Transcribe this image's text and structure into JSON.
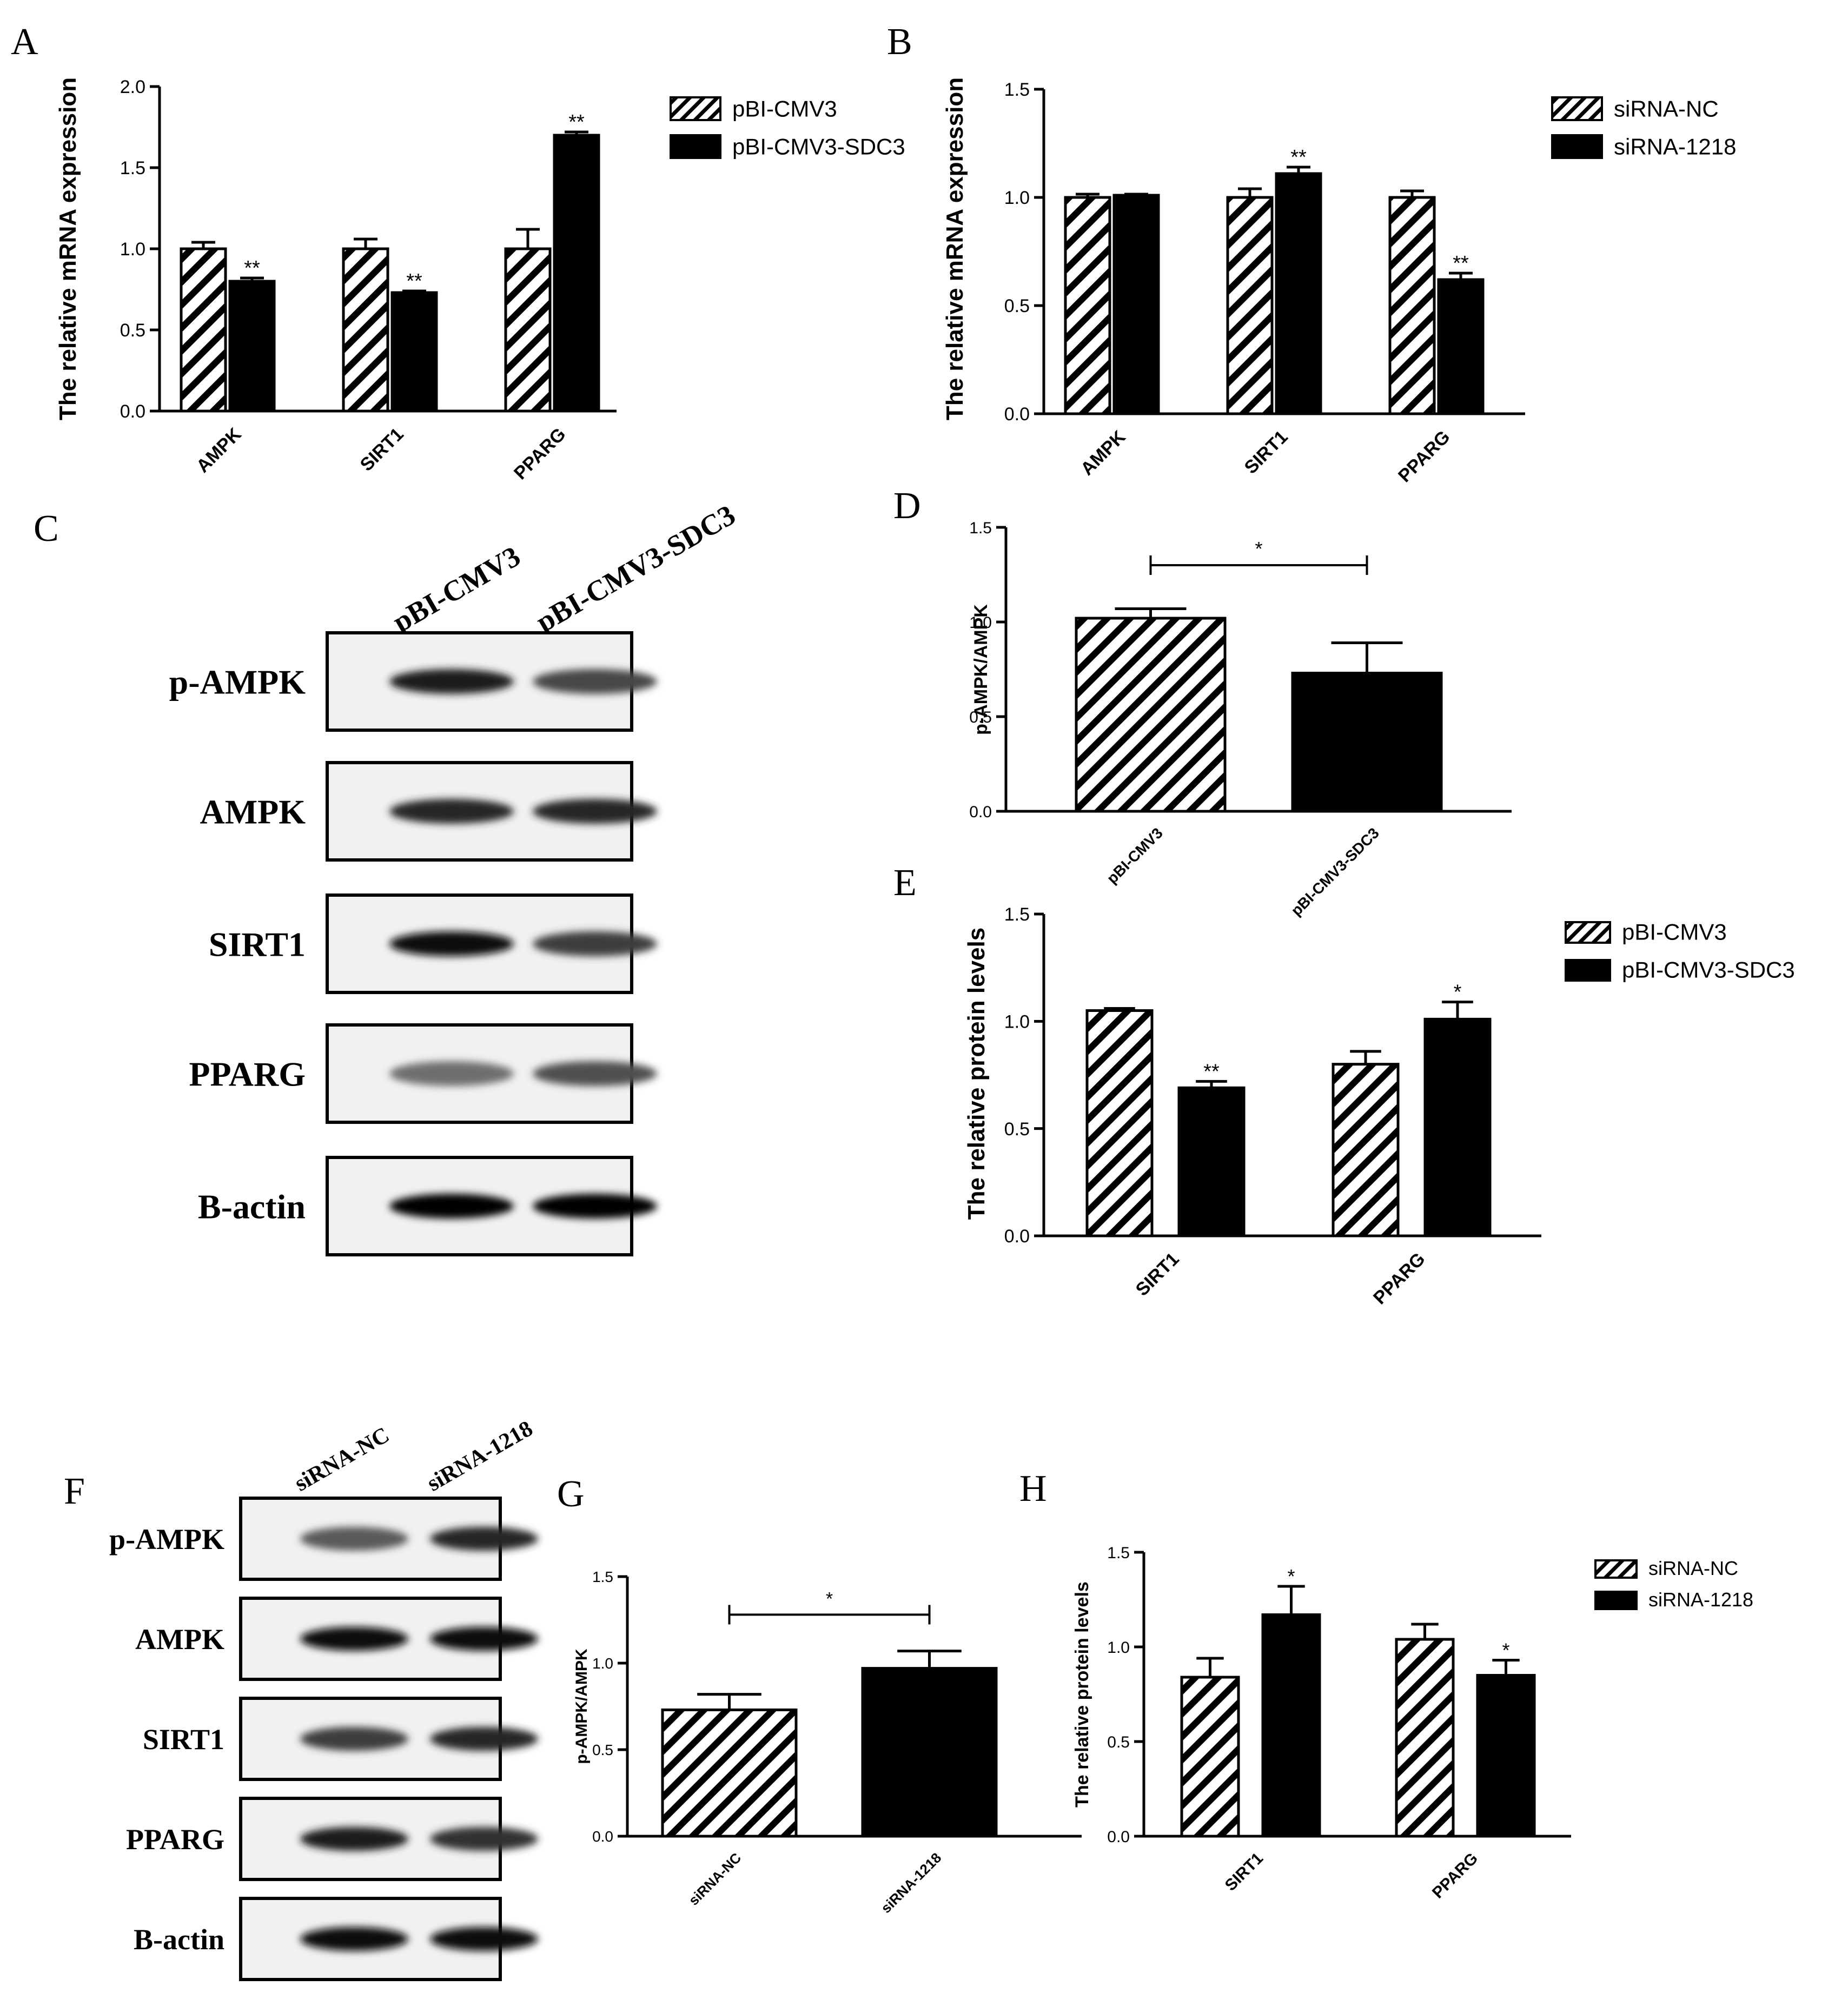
{
  "colors": {
    "bar_filled": "#000000",
    "hatch": "#000000",
    "background": "#ffffff"
  },
  "chart_data": [
    {
      "panel": "A",
      "type": "bar",
      "ylabel": "The relative mRNA expression",
      "ylim": [
        0,
        2.0
      ],
      "yticks": [
        0.0,
        0.5,
        1.0,
        1.5,
        2.0
      ],
      "ytick_decimals": 1,
      "categories": [
        "AMPK",
        "SIRT1",
        "PPARG"
      ],
      "series": [
        {
          "name": "pBI-CMV3",
          "style": "hatched",
          "values": [
            1.0,
            1.0,
            1.0
          ],
          "errors": [
            0.04,
            0.06,
            0.12
          ],
          "sig": [
            "",
            "",
            ""
          ]
        },
        {
          "name": "pBI-CMV3-SDC3",
          "style": "filled",
          "values": [
            0.8,
            0.73,
            1.7
          ],
          "errors": [
            0.02,
            0.01,
            0.02
          ],
          "sig": [
            "**",
            "**",
            "**"
          ]
        }
      ],
      "legend": "right",
      "grid": false
    },
    {
      "panel": "B",
      "type": "bar",
      "ylabel": "The relative mRNA expression",
      "ylim": [
        0,
        1.5
      ],
      "yticks": [
        0.0,
        0.5,
        1.0,
        1.5
      ],
      "ytick_decimals": 1,
      "categories": [
        "AMPK",
        "SIRT1",
        "PPARG"
      ],
      "series": [
        {
          "name": "siRNA-NC",
          "style": "hatched",
          "values": [
            1.0,
            1.0,
            1.0
          ],
          "errors": [
            0.015,
            0.04,
            0.03
          ],
          "sig": [
            "",
            "",
            ""
          ]
        },
        {
          "name": "siRNA-1218",
          "style": "filled",
          "values": [
            1.01,
            1.11,
            0.62
          ],
          "errors": [
            0.005,
            0.03,
            0.03
          ],
          "sig": [
            "",
            "**",
            "**"
          ]
        }
      ],
      "legend": "right",
      "grid": false
    },
    {
      "panel": "D",
      "type": "bar",
      "ylabel": "p-AMPK/AMPK",
      "ylim": [
        0,
        1.5
      ],
      "yticks": [
        0.0,
        0.5,
        1.0,
        1.5
      ],
      "ytick_decimals": 1,
      "categories": [
        "pBI-CMV3",
        "pBI-CMV3-SDC3"
      ],
      "series": [
        {
          "name": "",
          "style": "per-category",
          "styles": [
            "hatched",
            "filled"
          ],
          "values": [
            1.02,
            0.73
          ],
          "errors": [
            0.05,
            0.16
          ]
        }
      ],
      "bracket": {
        "from": 0,
        "to": 1,
        "y": 1.3,
        "label": "*"
      },
      "legend": "none",
      "grid": false
    },
    {
      "panel": "E",
      "type": "bar",
      "ylabel": "The relative protein levels",
      "ylim": [
        0,
        1.5
      ],
      "yticks": [
        0.0,
        0.5,
        1.0,
        1.5
      ],
      "ytick_decimals": 1,
      "categories": [
        "SIRT1",
        "PPARG"
      ],
      "series": [
        {
          "name": "pBI-CMV3",
          "style": "hatched",
          "values": [
            1.05,
            0.8
          ],
          "errors": [
            0.01,
            0.06
          ],
          "sig": [
            "",
            ""
          ]
        },
        {
          "name": "pBI-CMV3-SDC3",
          "style": "filled",
          "values": [
            0.69,
            1.01
          ],
          "errors": [
            0.03,
            0.08
          ],
          "sig": [
            "**",
            "*"
          ]
        }
      ],
      "legend": "right",
      "grid": false
    },
    {
      "panel": "G",
      "type": "bar",
      "ylabel": "p-AMPK/AMPK",
      "ylim": [
        0,
        1.5
      ],
      "yticks": [
        0.0,
        0.5,
        1.0,
        1.5
      ],
      "ytick_decimals": 1,
      "categories": [
        "siRNA-NC",
        "siRNA-1218"
      ],
      "series": [
        {
          "name": "",
          "style": "per-category",
          "styles": [
            "hatched",
            "filled"
          ],
          "values": [
            0.73,
            0.97
          ],
          "errors": [
            0.09,
            0.1
          ]
        }
      ],
      "bracket": {
        "from": 0,
        "to": 1,
        "y": 1.28,
        "label": "*"
      },
      "legend": "none",
      "grid": false
    },
    {
      "panel": "H",
      "type": "bar",
      "ylabel": "The relative protein levels",
      "ylim": [
        0,
        1.5
      ],
      "yticks": [
        0.0,
        0.5,
        1.0,
        1.5
      ],
      "ytick_decimals": 1,
      "categories": [
        "SIRT1",
        "PPARG"
      ],
      "series": [
        {
          "name": "siRNA-NC",
          "style": "hatched",
          "values": [
            0.84,
            1.04
          ],
          "errors": [
            0.1,
            0.08
          ],
          "sig": [
            "",
            ""
          ]
        },
        {
          "name": "siRNA-1218",
          "style": "filled",
          "values": [
            1.17,
            0.85
          ],
          "errors": [
            0.15,
            0.08
          ],
          "sig": [
            "*",
            "*"
          ]
        }
      ],
      "legend": "right",
      "grid": false
    }
  ],
  "blots": [
    {
      "panel": "C",
      "lanes": [
        "pBI-CMV3",
        "pBI-CMV3-SDC3"
      ],
      "rows": [
        {
          "label": "p-AMPK",
          "intensity": [
            0.85,
            0.65
          ]
        },
        {
          "label": "AMPK",
          "intensity": [
            0.8,
            0.8
          ]
        },
        {
          "label": "SIRT1",
          "intensity": [
            0.95,
            0.7
          ]
        },
        {
          "label": "PPARG",
          "intensity": [
            0.45,
            0.6
          ]
        },
        {
          "label": "B-actin",
          "intensity": [
            1.0,
            1.0
          ]
        }
      ]
    },
    {
      "panel": "F",
      "lanes": [
        "siRNA-NC",
        "siRNA-1218"
      ],
      "rows": [
        {
          "label": "p-AMPK",
          "intensity": [
            0.55,
            0.8
          ]
        },
        {
          "label": "AMPK",
          "intensity": [
            0.95,
            0.95
          ]
        },
        {
          "label": "SIRT1",
          "intensity": [
            0.7,
            0.8
          ]
        },
        {
          "label": "PPARG",
          "intensity": [
            0.85,
            0.75
          ]
        },
        {
          "label": "B-actin",
          "intensity": [
            0.95,
            0.95
          ]
        }
      ]
    }
  ]
}
